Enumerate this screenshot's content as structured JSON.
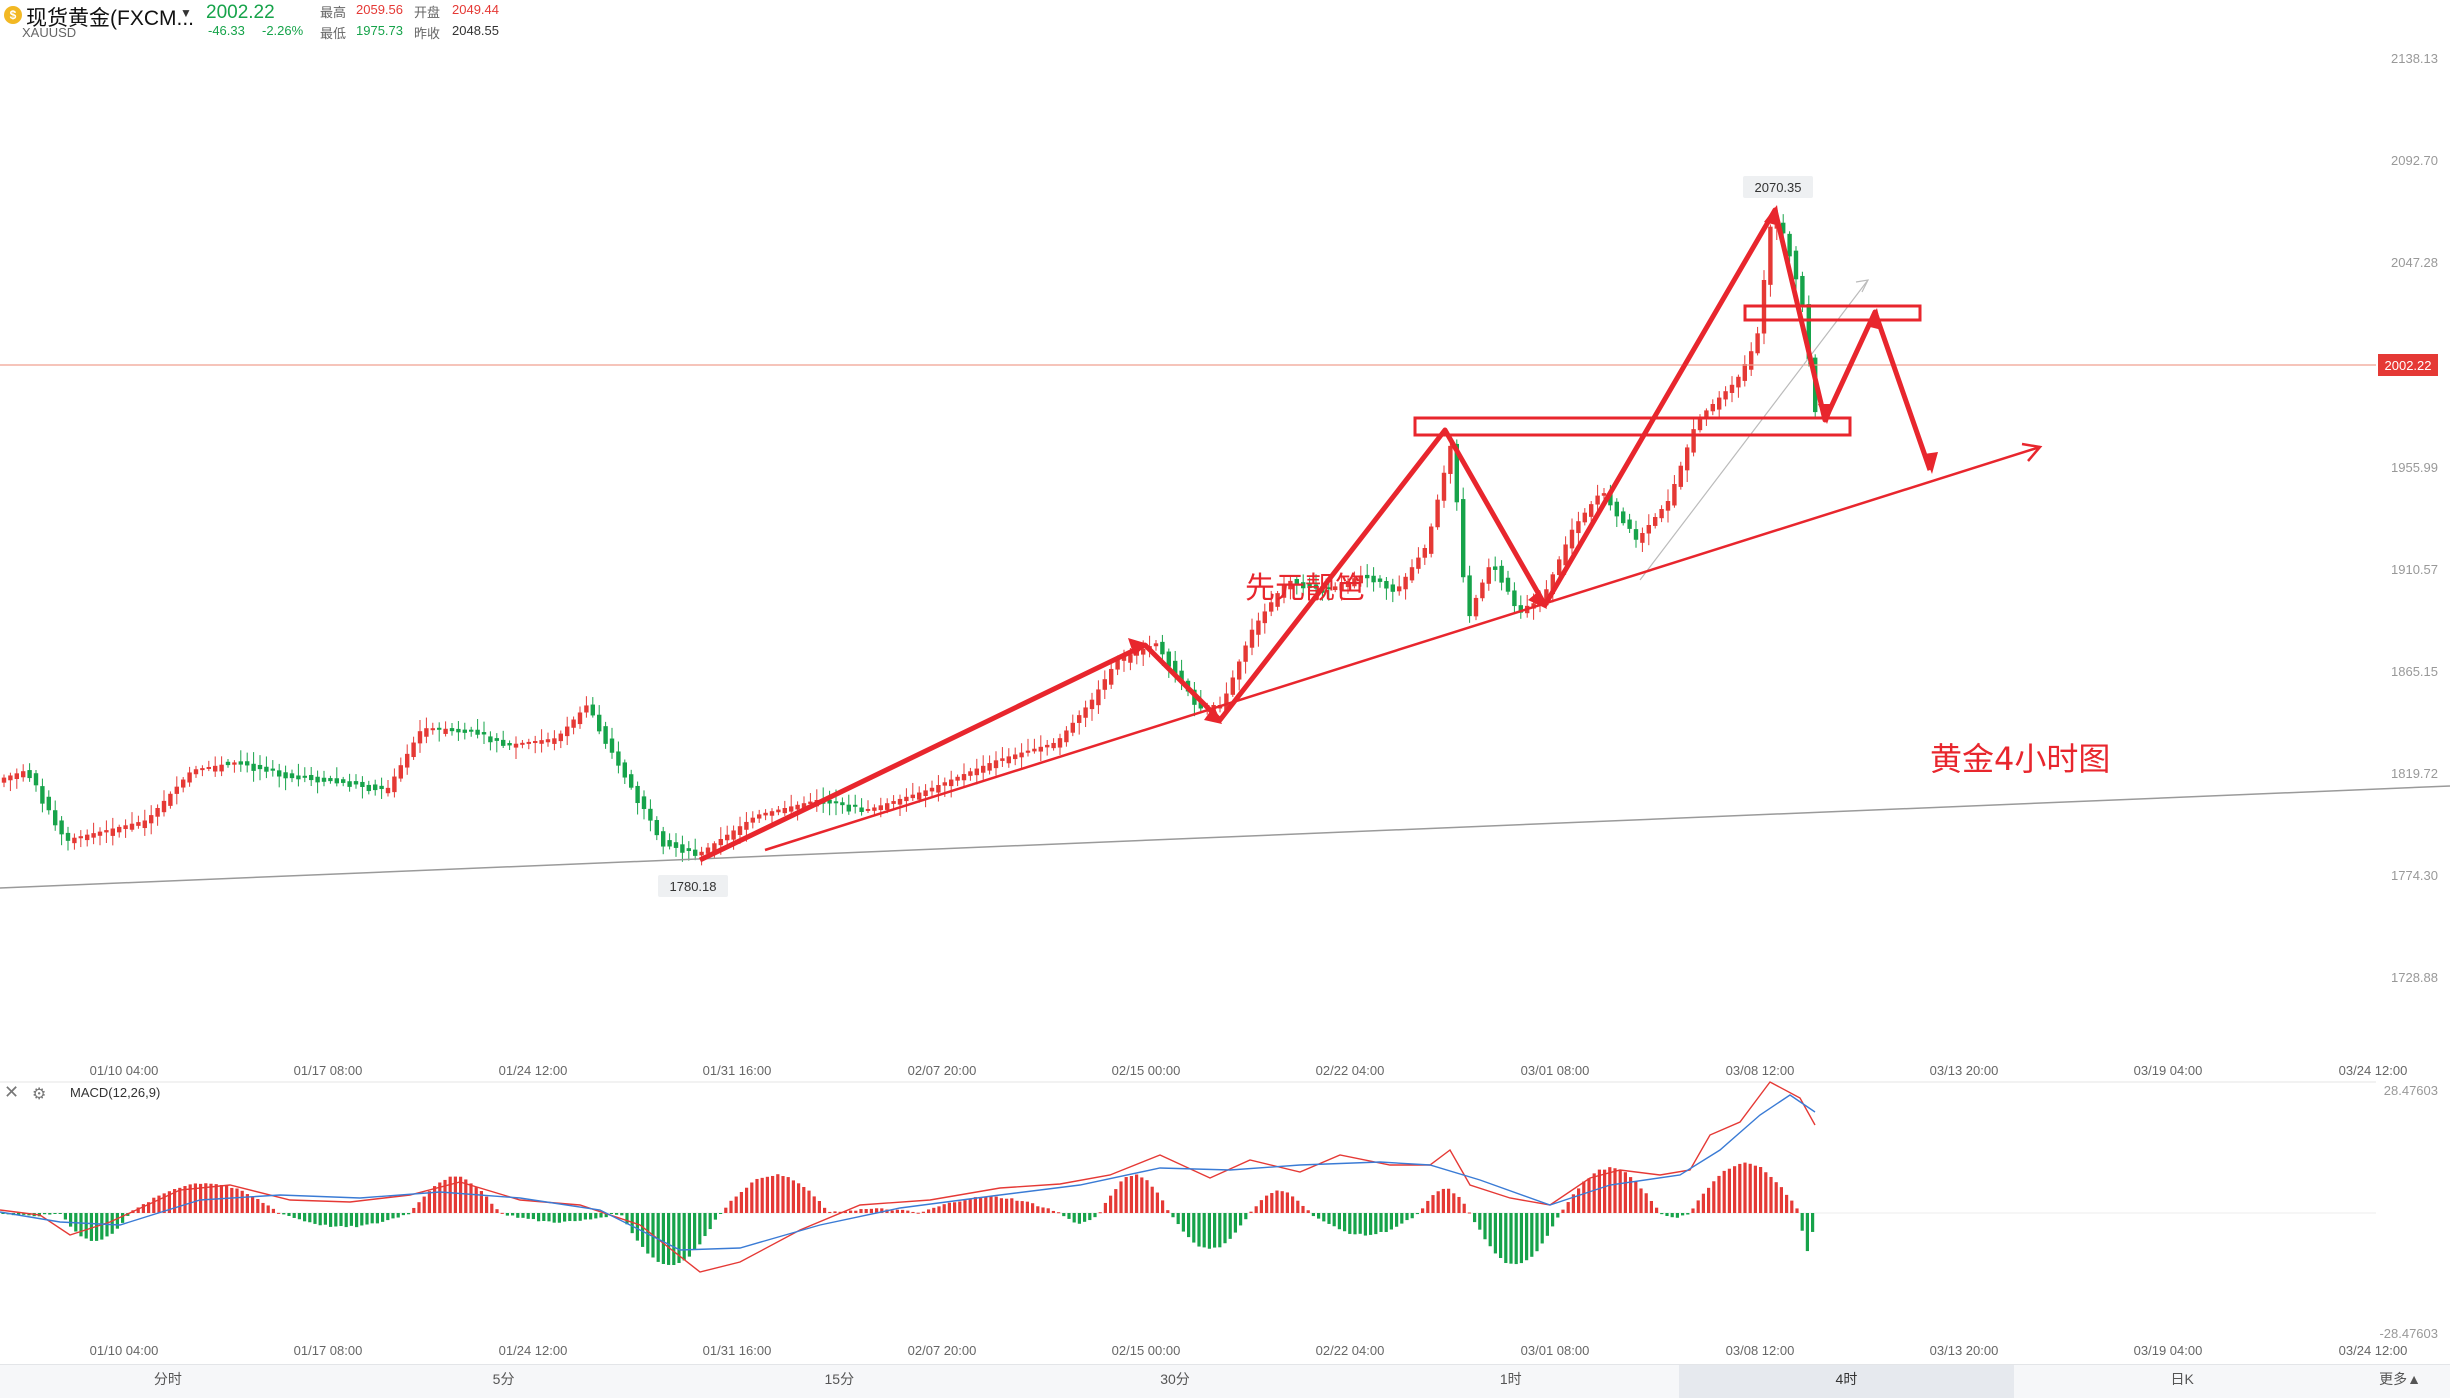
{
  "header": {
    "logo_glyph": "$",
    "instrument_name": "现货黄金(FXCM...",
    "dropdown_icon": "caret-down-icon",
    "symbol": "XAUUSD",
    "last_price": "2002.22",
    "change": "-46.33",
    "change_pct": "-2.26%",
    "stats": {
      "high_label": "最高",
      "high_value": "2059.56",
      "low_label": "最低",
      "low_value": "1975.73",
      "open_label": "开盘",
      "open_value": "2049.44",
      "prev_close_label": "昨收",
      "prev_close_value": "2048.55"
    },
    "colors": {
      "up": "#e53935",
      "down": "#16a34a"
    }
  },
  "price_axis": {
    "ticks": [
      "2138.13",
      "2092.70",
      "2047.28",
      "1955.99",
      "1910.57",
      "1865.15",
      "1819.72",
      "1774.30",
      "1728.88"
    ],
    "current_price_tag": "2002.22",
    "current_price_color": "#e53935"
  },
  "time_axis": {
    "ticks": [
      "01/10 04:00",
      "01/17 08:00",
      "01/24 12:00",
      "01/31 16:00",
      "02/07 20:00",
      "02/15 00:00",
      "02/22 04:00",
      "03/01 08:00",
      "03/08 12:00",
      "03/13 20:00",
      "03/19 04:00",
      "03/24 12:00"
    ]
  },
  "annotations": {
    "high_label": "2070.35",
    "low_label": "1780.18",
    "overlay_text_1": "先元靓笆",
    "title_text": "黄金4小时图",
    "drawing_color": "#e8262d"
  },
  "macd": {
    "label": "MACD(12,26,9)",
    "close_icon": "close-icon",
    "settings_icon": "gear-icon",
    "axis_top": "28.47603",
    "axis_bottom": "-28.47603",
    "line_colors": {
      "dif": "#e53935",
      "dea": "#3a7bd5"
    }
  },
  "period_tabs": {
    "items": [
      "分时",
      "5分",
      "15分",
      "30分",
      "1时",
      "4时",
      "日K"
    ],
    "active": "4时",
    "more_label": "更多",
    "more_icon": "caret-up-icon"
  }
}
